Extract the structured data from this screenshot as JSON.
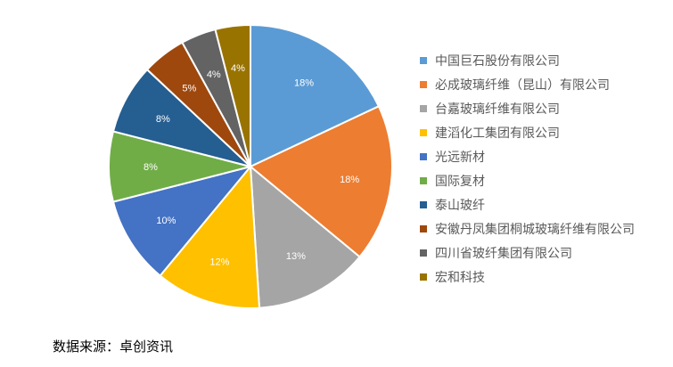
{
  "chart_data": {
    "type": "pie",
    "categories": [
      "中国巨石股份有限公司",
      "必成玻璃纤维（昆山）有限公司",
      "台嘉玻璃纤维有限公司",
      "建滔化工集团有限公司",
      "光远新材",
      "国际复材",
      "泰山玻纤",
      "安徽丹凤集团桐城玻璃纤维有限公司",
      "四川省玻纤集团有限公司",
      "宏和科技"
    ],
    "values": [
      18,
      18,
      13,
      12,
      10,
      8,
      8,
      5,
      4,
      4
    ],
    "data_labels": [
      "18%",
      "18%",
      "13%",
      "12%",
      "10%",
      "8%",
      "8%",
      "5%",
      "4%",
      "4%"
    ],
    "colors": [
      "#5B9BD5",
      "#ED7D31",
      "#A5A5A5",
      "#FFC000",
      "#4472C4",
      "#70AD47",
      "#255E91",
      "#9E480E",
      "#636363",
      "#997300"
    ],
    "legend_position": "right"
  },
  "source_note": "数据来源：卓创资讯"
}
